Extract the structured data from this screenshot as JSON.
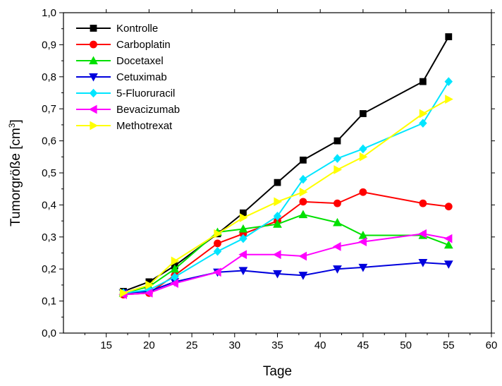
{
  "chart_data": {
    "type": "line",
    "xlabel": "Tage",
    "ylabel": "Tumorgröße [cm",
    "ylabel_sup": "3",
    "ylabel_end": "]",
    "xlim": [
      10,
      60
    ],
    "ylim": [
      0.0,
      1.0
    ],
    "x_ticks": [
      15,
      20,
      25,
      30,
      35,
      40,
      45,
      50,
      55,
      60
    ],
    "x_tick_labels": [
      "15",
      "20",
      "25",
      "30",
      "35",
      "40",
      "45",
      "50",
      "55",
      "60"
    ],
    "y_ticks": [
      0.0,
      0.1,
      0.2,
      0.3,
      0.4,
      0.5,
      0.6,
      0.7,
      0.8,
      0.9,
      1.0
    ],
    "y_tick_labels": [
      "0,0",
      "0,1",
      "0,2",
      "0,3",
      "0,4",
      "0,5",
      "0,6",
      "0,7",
      "0,8",
      "0,9",
      "1,0"
    ],
    "grid": false,
    "legend_position": "top-left",
    "x": [
      17,
      20,
      23,
      28,
      31,
      35,
      38,
      42,
      45,
      52,
      55
    ],
    "series": [
      {
        "name": "Kontrolle",
        "color": "#000000",
        "marker": "square",
        "values": [
          0.13,
          0.16,
          0.21,
          0.31,
          0.375,
          0.47,
          0.54,
          0.6,
          0.685,
          0.785,
          0.925
        ]
      },
      {
        "name": "Carboplatin",
        "color": "#ff0000",
        "marker": "circle",
        "values": [
          0.12,
          0.125,
          0.18,
          0.28,
          0.31,
          0.35,
          0.41,
          0.405,
          0.44,
          0.405,
          0.395
        ]
      },
      {
        "name": "Docetaxel",
        "color": "#00e000",
        "marker": "triangle-up",
        "values": [
          0.125,
          0.145,
          0.2,
          0.315,
          0.325,
          0.34,
          0.37,
          0.345,
          0.305,
          0.305,
          0.275
        ]
      },
      {
        "name": "Cetuximab",
        "color": "#0000dd",
        "marker": "triangle-down",
        "values": [
          0.125,
          0.13,
          0.16,
          0.19,
          0.195,
          0.185,
          0.18,
          0.2,
          0.205,
          0.22,
          0.215
        ]
      },
      {
        "name": "5-Fluoruracil",
        "color": "#00e5ff",
        "marker": "diamond",
        "values": [
          0.125,
          0.135,
          0.175,
          0.255,
          0.295,
          0.365,
          0.48,
          0.545,
          0.575,
          0.655,
          0.785
        ]
      },
      {
        "name": "Bevacizumab",
        "color": "#ff00ff",
        "marker": "triangle-left",
        "values": [
          0.12,
          0.125,
          0.155,
          0.19,
          0.245,
          0.245,
          0.24,
          0.27,
          0.285,
          0.31,
          0.295
        ]
      },
      {
        "name": "Methotrexat",
        "color": "#ffff00",
        "marker": "triangle-right",
        "values": [
          0.125,
          0.15,
          0.225,
          0.31,
          0.36,
          0.41,
          0.44,
          0.51,
          0.55,
          0.685,
          0.73
        ]
      }
    ]
  }
}
